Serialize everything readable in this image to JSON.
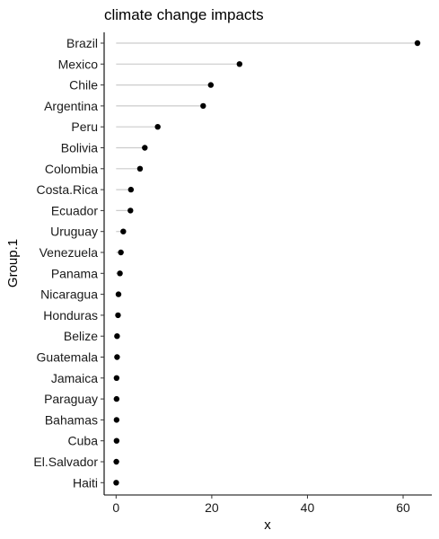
{
  "chart_data": {
    "type": "lollipop",
    "title": "climate change impacts",
    "xlabel": "x",
    "ylabel": "Group.1",
    "xlim": [
      -2.5,
      66
    ],
    "x_ticks": [
      0,
      20,
      40,
      60
    ],
    "grid": false,
    "legend": "none",
    "colors": {
      "point": "#000000",
      "segment": "#cccccc",
      "axis": "#000000"
    },
    "categories": [
      "Brazil",
      "Mexico",
      "Chile",
      "Argentina",
      "Peru",
      "Bolivia",
      "Colombia",
      "Costa.Rica",
      "Ecuador",
      "Uruguay",
      "Venezuela",
      "Panama",
      "Nicaragua",
      "Honduras",
      "Belize",
      "Guatemala",
      "Jamaica",
      "Paraguay",
      "Bahamas",
      "Cuba",
      "El.Salvador",
      "Haiti"
    ],
    "values": [
      63,
      25.8,
      19.8,
      18.2,
      8.7,
      6,
      5,
      3.1,
      3,
      1.5,
      1,
      0.8,
      0.5,
      0.4,
      0.2,
      0.2,
      0.1,
      0.1,
      0.1,
      0.1,
      0.05,
      0.02
    ]
  }
}
